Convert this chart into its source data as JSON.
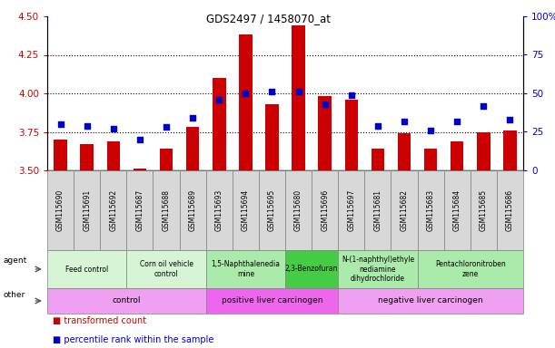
{
  "title": "GDS2497 / 1458070_at",
  "samples": [
    "GSM115690",
    "GSM115691",
    "GSM115692",
    "GSM115687",
    "GSM115688",
    "GSM115689",
    "GSM115693",
    "GSM115694",
    "GSM115695",
    "GSM115680",
    "GSM115696",
    "GSM115697",
    "GSM115681",
    "GSM115682",
    "GSM115683",
    "GSM115684",
    "GSM115685",
    "GSM115686"
  ],
  "transformed_count": [
    3.7,
    3.67,
    3.69,
    3.51,
    3.64,
    3.78,
    4.1,
    4.38,
    3.93,
    4.44,
    3.98,
    3.96,
    3.64,
    3.74,
    3.64,
    3.69,
    3.75,
    3.76
  ],
  "percentile_rank": [
    30,
    29,
    27,
    20,
    28,
    34,
    46,
    50,
    51,
    51,
    43,
    49,
    29,
    32,
    26,
    32,
    42,
    33
  ],
  "ylim_left": [
    3.5,
    4.5
  ],
  "ylim_right": [
    0,
    100
  ],
  "yticks_left": [
    3.5,
    3.75,
    4.0,
    4.25,
    4.5
  ],
  "yticks_right": [
    0,
    25,
    50,
    75,
    100
  ],
  "hlines": [
    3.75,
    4.0,
    4.25
  ],
  "agent_groups": [
    {
      "label": "Feed control",
      "start": 0,
      "end": 3,
      "color": "#d5f5d5"
    },
    {
      "label": "Corn oil vehicle\ncontrol",
      "start": 3,
      "end": 6,
      "color": "#d5f5d5"
    },
    {
      "label": "1,5-Naphthalenedia\nmine",
      "start": 6,
      "end": 9,
      "color": "#aaeaaa"
    },
    {
      "label": "2,3-Benzofuran",
      "start": 9,
      "end": 11,
      "color": "#44cc44"
    },
    {
      "label": "N-(1-naphthyl)ethyle\nnediamine\ndihydrochloride",
      "start": 11,
      "end": 14,
      "color": "#aaeaaa"
    },
    {
      "label": "Pentachloronitroben\nzene",
      "start": 14,
      "end": 18,
      "color": "#aaeaaa"
    }
  ],
  "other_groups": [
    {
      "label": "control",
      "start": 0,
      "end": 6,
      "color": "#f0a0f0"
    },
    {
      "label": "positive liver carcinogen",
      "start": 6,
      "end": 11,
      "color": "#ee66ee"
    },
    {
      "label": "negative liver carcinogen",
      "start": 11,
      "end": 18,
      "color": "#f0a0f0"
    }
  ],
  "bar_color": "#cc0000",
  "dot_color": "#0000cc",
  "bar_width": 0.5,
  "tick_color_left": "#cc0000",
  "tick_color_right": "#0000cc",
  "bg_color": "#ffffff",
  "xticklabel_bg": "#d8d8d8"
}
